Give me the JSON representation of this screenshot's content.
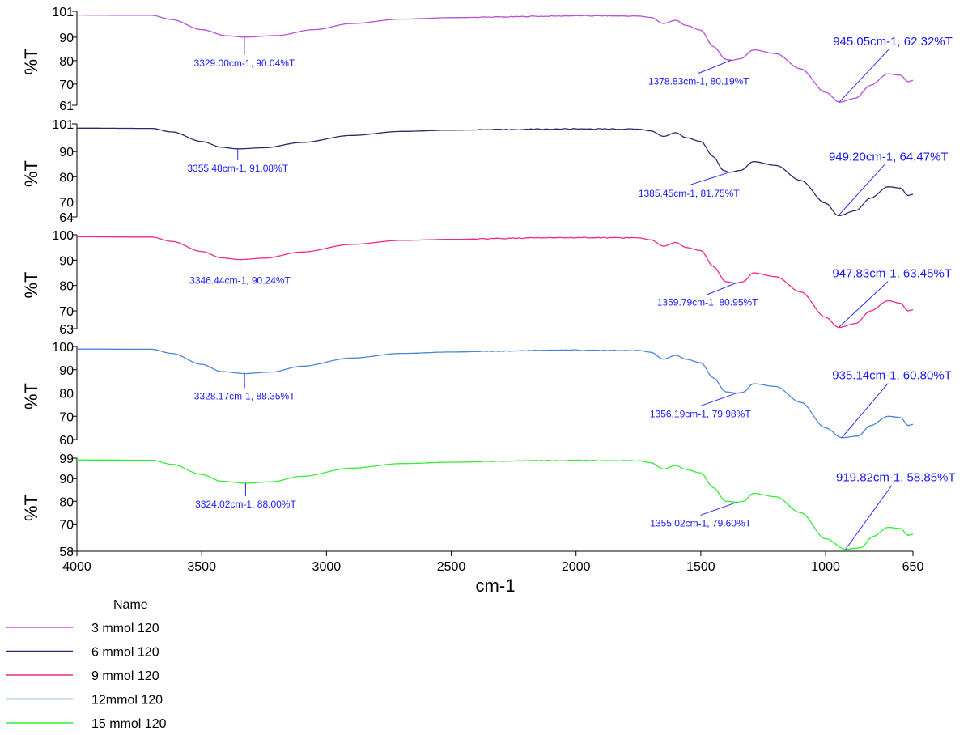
{
  "chart_data": {
    "type": "line",
    "xlabel": "cm-1",
    "xlim": [
      4000,
      650
    ],
    "x_reversed": true,
    "x_ticks": [
      "4000",
      "3500",
      "3000",
      "2500",
      "2000",
      "1500",
      "1000",
      "650"
    ],
    "legend_title": "Name",
    "legend_placement": "bottom-left",
    "grid": false,
    "panels": [
      {
        "series_name": "3 mmol 120",
        "color": "#b84fd8",
        "ylabel": "%T",
        "ylim": [
          61,
          101
        ],
        "y_ticks": [
          "101",
          "90",
          "80",
          "70",
          "61"
        ],
        "points": [
          [
            4000,
            99.4
          ],
          [
            3700,
            99.3
          ],
          [
            3620,
            97.5
          ],
          [
            3500,
            93.2
          ],
          [
            3400,
            90.6
          ],
          [
            3329,
            90.04
          ],
          [
            3200,
            90.7
          ],
          [
            3050,
            93.2
          ],
          [
            2900,
            95.8
          ],
          [
            2700,
            97.7
          ],
          [
            2500,
            98.3
          ],
          [
            2300,
            98.6
          ],
          [
            2150,
            98.9
          ],
          [
            2000,
            99.1
          ],
          [
            1750,
            99.0
          ],
          [
            1700,
            98.4
          ],
          [
            1650,
            95.8
          ],
          [
            1600,
            97.2
          ],
          [
            1560,
            95.0
          ],
          [
            1500,
            93.0
          ],
          [
            1450,
            86.0
          ],
          [
            1400,
            80.6
          ],
          [
            1378.83,
            80.19
          ],
          [
            1340,
            80.8
          ],
          [
            1290,
            84.6
          ],
          [
            1200,
            83.0
          ],
          [
            1100,
            76.5
          ],
          [
            1000,
            66.5
          ],
          [
            945.05,
            62.32
          ],
          [
            880,
            64.0
          ],
          [
            820,
            69.5
          ],
          [
            750,
            74.4
          ],
          [
            700,
            73.8
          ],
          [
            670,
            71.0
          ],
          [
            650,
            71.6
          ]
        ],
        "annotations": [
          {
            "text": "3329.00cm-1, 90.04%T",
            "x": 3329.0,
            "y": 90.04
          },
          {
            "text": "1378.83cm-1, 80.19%T",
            "x": 1378.83,
            "y": 80.19
          },
          {
            "text": "945.05cm-1, 62.32%T",
            "x": 945.05,
            "y": 62.32
          }
        ]
      },
      {
        "series_name": "6 mmol 120",
        "color": "#2b2b6b",
        "ylabel": "%T",
        "ylim": [
          64,
          101
        ],
        "y_ticks": [
          "101",
          "90",
          "80",
          "70",
          "64"
        ],
        "points": [
          [
            4000,
            99.3
          ],
          [
            3700,
            99.2
          ],
          [
            3620,
            97.8
          ],
          [
            3500,
            94.0
          ],
          [
            3420,
            91.7
          ],
          [
            3355.48,
            91.08
          ],
          [
            3250,
            91.5
          ],
          [
            3100,
            93.6
          ],
          [
            2900,
            96.4
          ],
          [
            2700,
            98.0
          ],
          [
            2500,
            98.5
          ],
          [
            2300,
            98.7
          ],
          [
            2150,
            98.9
          ],
          [
            2000,
            99.0
          ],
          [
            1750,
            98.9
          ],
          [
            1700,
            98.2
          ],
          [
            1650,
            96.0
          ],
          [
            1600,
            97.5
          ],
          [
            1560,
            95.5
          ],
          [
            1500,
            94.0
          ],
          [
            1450,
            88.0
          ],
          [
            1410,
            82.5
          ],
          [
            1385.45,
            81.75
          ],
          [
            1340,
            82.5
          ],
          [
            1290,
            86.0
          ],
          [
            1200,
            84.5
          ],
          [
            1100,
            78.5
          ],
          [
            1000,
            69.5
          ],
          [
            949.2,
            64.47
          ],
          [
            880,
            66.5
          ],
          [
            820,
            71.5
          ],
          [
            750,
            76.0
          ],
          [
            700,
            75.5
          ],
          [
            670,
            72.5
          ],
          [
            650,
            73.0
          ]
        ],
        "annotations": [
          {
            "text": "3355.48cm-1, 91.08%T",
            "x": 3355.48,
            "y": 91.08
          },
          {
            "text": "1385.45cm-1, 81.75%T",
            "x": 1385.45,
            "y": 81.75
          },
          {
            "text": "949.20cm-1, 64.47%T",
            "x": 949.2,
            "y": 64.47
          }
        ]
      },
      {
        "series_name": "9 mmol 120",
        "color": "#ee2a8a",
        "ylabel": "%T",
        "ylim": [
          63,
          100
        ],
        "y_ticks": [
          "100",
          "90",
          "80",
          "70",
          "63"
        ],
        "points": [
          [
            4000,
            99.2
          ],
          [
            3700,
            99.1
          ],
          [
            3620,
            97.4
          ],
          [
            3500,
            93.4
          ],
          [
            3420,
            90.9
          ],
          [
            3346.44,
            90.24
          ],
          [
            3250,
            90.8
          ],
          [
            3100,
            93.2
          ],
          [
            2900,
            96.2
          ],
          [
            2700,
            97.8
          ],
          [
            2500,
            98.2
          ],
          [
            2300,
            98.5
          ],
          [
            2150,
            98.8
          ],
          [
            2000,
            98.9
          ],
          [
            1750,
            98.8
          ],
          [
            1700,
            98.0
          ],
          [
            1650,
            95.5
          ],
          [
            1600,
            97.0
          ],
          [
            1560,
            95.0
          ],
          [
            1500,
            93.8
          ],
          [
            1450,
            87.5
          ],
          [
            1400,
            81.5
          ],
          [
            1359.79,
            80.95
          ],
          [
            1330,
            81.5
          ],
          [
            1290,
            85.0
          ],
          [
            1200,
            83.5
          ],
          [
            1100,
            77.5
          ],
          [
            1000,
            67.5
          ],
          [
            947.83,
            63.45
          ],
          [
            880,
            65.0
          ],
          [
            820,
            70.0
          ],
          [
            750,
            74.0
          ],
          [
            700,
            73.0
          ],
          [
            670,
            70.0
          ],
          [
            650,
            70.5
          ]
        ],
        "annotations": [
          {
            "text": "3346.44cm-1, 90.24%T",
            "x": 3346.44,
            "y": 90.24
          },
          {
            "text": "1359.79cm-1, 80.95%T",
            "x": 1359.79,
            "y": 80.95
          },
          {
            "text": "947.83cm-1, 63.45%T",
            "x": 947.83,
            "y": 63.45
          }
        ]
      },
      {
        "series_name": "12mmol 120",
        "color": "#4a86d8",
        "ylabel": "%T",
        "ylim": [
          60,
          100
        ],
        "y_ticks": [
          "100",
          "90",
          "80",
          "70",
          "60"
        ],
        "points": [
          [
            4000,
            98.9
          ],
          [
            3700,
            98.8
          ],
          [
            3620,
            97.0
          ],
          [
            3500,
            92.3
          ],
          [
            3420,
            89.2
          ],
          [
            3328.17,
            88.35
          ],
          [
            3220,
            89.0
          ],
          [
            3100,
            91.5
          ],
          [
            2900,
            95.0
          ],
          [
            2700,
            97.0
          ],
          [
            2500,
            97.6
          ],
          [
            2300,
            98.0
          ],
          [
            2150,
            98.3
          ],
          [
            2000,
            98.4
          ],
          [
            1750,
            98.3
          ],
          [
            1700,
            97.5
          ],
          [
            1650,
            94.5
          ],
          [
            1600,
            96.2
          ],
          [
            1560,
            94.5
          ],
          [
            1500,
            93.0
          ],
          [
            1450,
            86.5
          ],
          [
            1400,
            80.5
          ],
          [
            1356.19,
            79.98
          ],
          [
            1330,
            80.3
          ],
          [
            1290,
            84.0
          ],
          [
            1200,
            82.8
          ],
          [
            1100,
            76.0
          ],
          [
            1000,
            65.0
          ],
          [
            935.14,
            60.8
          ],
          [
            870,
            61.5
          ],
          [
            820,
            66.0
          ],
          [
            750,
            70.0
          ],
          [
            700,
            69.5
          ],
          [
            670,
            66.0
          ],
          [
            650,
            66.5
          ]
        ],
        "annotations": [
          {
            "text": "3328.17cm-1, 88.35%T",
            "x": 3328.17,
            "y": 88.35
          },
          {
            "text": "1356.19cm-1, 79.98%T",
            "x": 1356.19,
            "y": 79.98
          },
          {
            "text": "935.14cm-1, 60.80%T",
            "x": 935.14,
            "y": 60.8
          }
        ]
      },
      {
        "series_name": "15 mmol 120",
        "color": "#33ee33",
        "ylabel": "%T",
        "ylim": [
          58,
          99
        ],
        "y_ticks": [
          "99",
          "90",
          "80",
          "70",
          "58"
        ],
        "points": [
          [
            4000,
            98.2
          ],
          [
            3700,
            98.1
          ],
          [
            3620,
            96.3
          ],
          [
            3500,
            91.8
          ],
          [
            3420,
            88.8
          ],
          [
            3324.02,
            88.0
          ],
          [
            3220,
            88.6
          ],
          [
            3100,
            91.0
          ],
          [
            2900,
            94.6
          ],
          [
            2700,
            96.6
          ],
          [
            2500,
            97.2
          ],
          [
            2300,
            97.6
          ],
          [
            2150,
            97.9
          ],
          [
            2000,
            98.0
          ],
          [
            1750,
            97.9
          ],
          [
            1700,
            97.0
          ],
          [
            1650,
            94.2
          ],
          [
            1600,
            95.8
          ],
          [
            1560,
            94.0
          ],
          [
            1500,
            92.5
          ],
          [
            1450,
            86.0
          ],
          [
            1400,
            80.0
          ],
          [
            1355.02,
            79.6
          ],
          [
            1330,
            80.0
          ],
          [
            1290,
            83.5
          ],
          [
            1200,
            82.0
          ],
          [
            1100,
            75.0
          ],
          [
            1000,
            63.5
          ],
          [
            919.82,
            58.85
          ],
          [
            860,
            59.5
          ],
          [
            810,
            64.5
          ],
          [
            750,
            68.5
          ],
          [
            700,
            68.0
          ],
          [
            670,
            65.0
          ],
          [
            650,
            65.5
          ]
        ],
        "annotations": [
          {
            "text": "3324.02cm-1, 88.00%T",
            "x": 3324.02,
            "y": 88.0
          },
          {
            "text": "1355.02cm-1, 79.60%T",
            "x": 1355.02,
            "y": 79.6
          },
          {
            "text": "919.82cm-1, 58.85%T",
            "x": 919.82,
            "y": 58.85
          }
        ]
      }
    ]
  }
}
